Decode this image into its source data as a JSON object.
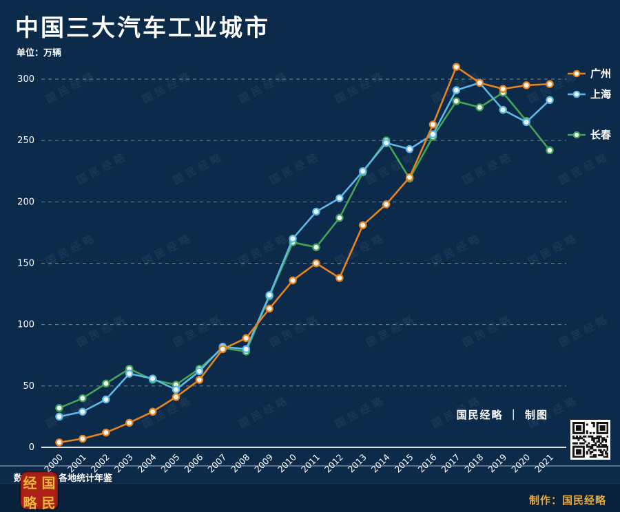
{
  "title": "中国三大汽车工业城市",
  "unit_label": "单位：万辆",
  "watermark": "国民经略",
  "credit_inline": "国民经略 ｜ 制图",
  "source": "数据来源：各地统计年鉴",
  "footer": {
    "made_by": "制作：国民经略",
    "seal_chars": [
      "经",
      "国",
      "略",
      "民"
    ]
  },
  "colors": {
    "background": "#0C2B4B",
    "guangzhou": "#E8831D",
    "shanghai": "#5CB9E8",
    "changchun": "#44A455",
    "accent_gold": "#E9A83C",
    "marker_fill": "#F3F8F6",
    "seal_red": "#AD2015"
  },
  "chart_data": {
    "type": "line",
    "x": [
      2000,
      2001,
      2002,
      2003,
      2004,
      2005,
      2006,
      2007,
      2008,
      2009,
      2010,
      2011,
      2012,
      2013,
      2014,
      2015,
      2016,
      2017,
      2018,
      2019,
      2020,
      2021
    ],
    "ylim": [
      0,
      300
    ],
    "ytick_step": 50,
    "grid": "dashed-horizontal",
    "legend_position": "right-of-line-ends",
    "series": [
      {
        "name": "广州",
        "color_key": "guangzhou",
        "values": [
          4,
          7,
          12,
          20,
          29,
          41,
          55,
          80,
          89,
          113,
          136,
          150,
          138,
          181,
          198,
          220,
          263,
          310,
          297,
          292,
          295,
          296
        ]
      },
      {
        "name": "上海",
        "color_key": "shanghai",
        "values": [
          25,
          29,
          39,
          60,
          56,
          47,
          62,
          82,
          80,
          124,
          170,
          192,
          203,
          225,
          248,
          243,
          255,
          291,
          297,
          275,
          265,
          283
        ]
      },
      {
        "name": "长春",
        "color_key": "changchun",
        "values": [
          32,
          40,
          52,
          64,
          55,
          51,
          64,
          81,
          78,
          123,
          167,
          163,
          187,
          224,
          250,
          219,
          253,
          282,
          277,
          289,
          266,
          242
        ]
      }
    ]
  }
}
